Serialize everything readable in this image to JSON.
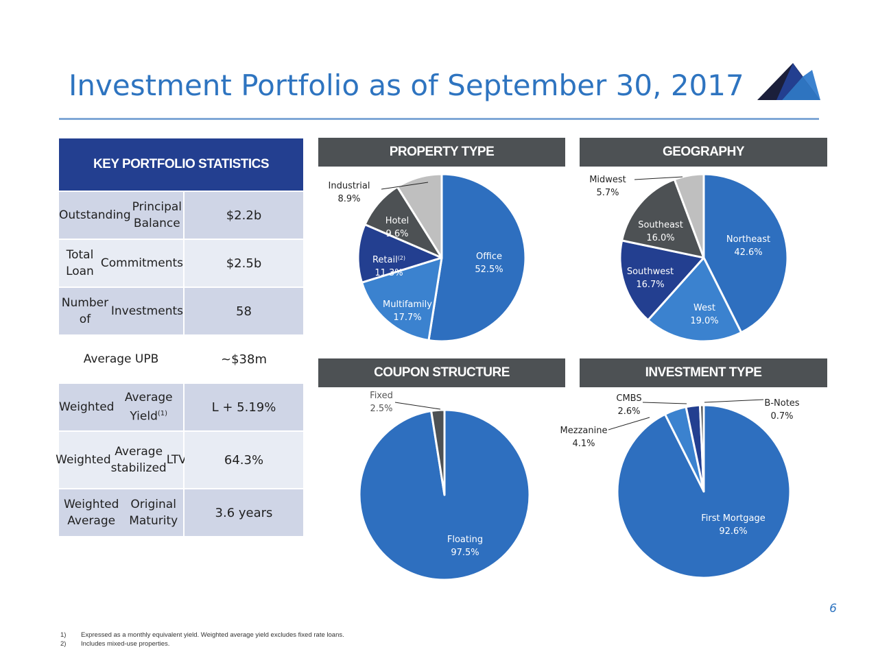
{
  "title": "Investment Portfolio as of September 30, 2017",
  "page_number": "6",
  "stats": {
    "header": "KEY PORTFOLIO STATISTICS",
    "rows": [
      {
        "label": [
          "Outstanding",
          "Principal Balance"
        ],
        "value": "$2.2b",
        "shade": "dark"
      },
      {
        "label": [
          "Total Loan",
          "Commitments"
        ],
        "value": "$2.5b",
        "shade": "light"
      },
      {
        "label": [
          "Number of",
          "Investments"
        ],
        "value": "58",
        "shade": "dark"
      },
      {
        "label": [
          "Average UPB"
        ],
        "value": "~$38m",
        "shade": "white"
      },
      {
        "label": [
          "Weighted",
          "Average Yield(1)"
        ],
        "value": "L + 5.19%",
        "shade": "dark"
      },
      {
        "label": [
          "Weighted",
          "Average stabilized",
          "LTV"
        ],
        "value": "64.3%",
        "shade": "light"
      },
      {
        "label": [
          "Weighted Average",
          "Original Maturity"
        ],
        "value": "3.6 years",
        "shade": "dark"
      }
    ]
  },
  "footnotes": [
    {
      "num": "1)",
      "text": "Expressed as a monthly equivalent yield. Weighted average yield excludes fixed rate loans."
    },
    {
      "num": "2)",
      "text": "Includes mixed-use properties."
    }
  ],
  "chart_data": [
    {
      "type": "pie",
      "title": "PROPERTY TYPE",
      "slices": [
        {
          "label": "Office",
          "value": 52.5,
          "display": "52.5%",
          "color": "#2e6fbf"
        },
        {
          "label": "Multifamily",
          "value": 17.7,
          "display": "17.7%",
          "color": "#3b82cf"
        },
        {
          "label": "Retail(2)",
          "value": 11.3,
          "display": "11.3%",
          "color": "#233f90"
        },
        {
          "label": "Hotel",
          "value": 9.6,
          "display": "9.6%",
          "color": "#4d5154"
        },
        {
          "label": "Industrial",
          "value": 8.9,
          "display": "8.9%",
          "color": "#bfbfbf"
        }
      ]
    },
    {
      "type": "pie",
      "title": "GEOGRAPHY",
      "slices": [
        {
          "label": "Northeast",
          "value": 42.6,
          "display": "42.6%",
          "color": "#2e6fbf"
        },
        {
          "label": "West",
          "value": 19.0,
          "display": "19.0%",
          "color": "#3b82cf"
        },
        {
          "label": "Southwest",
          "value": 16.7,
          "display": "16.7%",
          "color": "#233f90"
        },
        {
          "label": "Southeast",
          "value": 16.0,
          "display": "16.0%",
          "color": "#4d5154"
        },
        {
          "label": "Midwest",
          "value": 5.7,
          "display": "5.7%",
          "color": "#bfbfbf"
        }
      ]
    },
    {
      "type": "pie",
      "title": "COUPON STRUCTURE",
      "slices": [
        {
          "label": "Floating",
          "value": 97.5,
          "display": "97.5%",
          "color": "#2e6fbf"
        },
        {
          "label": "Fixed",
          "value": 2.5,
          "display": "2.5%",
          "color": "#4d5154"
        }
      ]
    },
    {
      "type": "pie",
      "title": "INVESTMENT TYPE",
      "slices": [
        {
          "label": "First Mortgage",
          "value": 92.6,
          "display": "92.6%",
          "color": "#2e6fbf"
        },
        {
          "label": "Mezzanine",
          "value": 4.1,
          "display": "4.1%",
          "color": "#3b82cf"
        },
        {
          "label": "CMBS",
          "value": 2.6,
          "display": "2.6%",
          "color": "#233f90"
        },
        {
          "label": "B-Notes",
          "value": 0.7,
          "display": "0.7%",
          "color": "#4d5154"
        }
      ]
    }
  ]
}
